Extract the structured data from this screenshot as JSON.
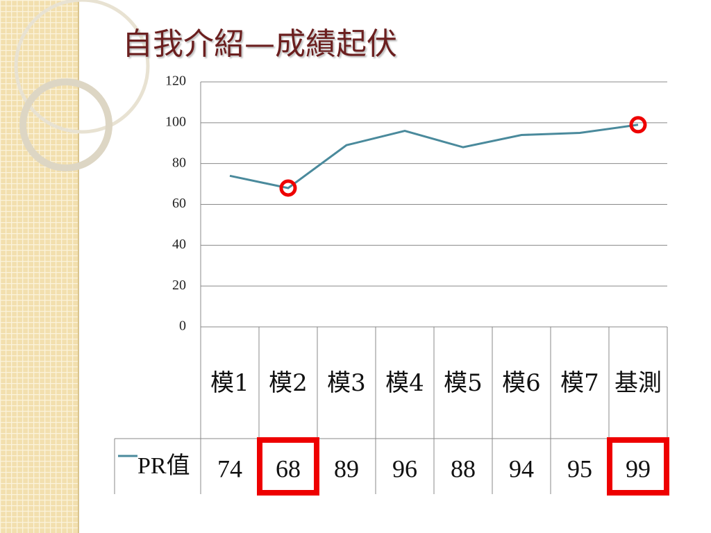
{
  "chart_data": {
    "type": "line",
    "title": "自我介紹—成績起伏",
    "categories": [
      "模1",
      "模2",
      "模3",
      "模4",
      "模5",
      "模6",
      "模7",
      "基測"
    ],
    "series": [
      {
        "name": "PR值",
        "color": "#4a8a9c",
        "values": [
          74,
          68,
          89,
          96,
          88,
          94,
          95,
          99
        ]
      }
    ],
    "ylim": [
      0,
      120
    ],
    "yticks": [
      0,
      20,
      40,
      60,
      80,
      100,
      120
    ],
    "grid": true,
    "data_table": true,
    "highlight": [
      1,
      7
    ],
    "highlight_color": "#ee0000"
  }
}
